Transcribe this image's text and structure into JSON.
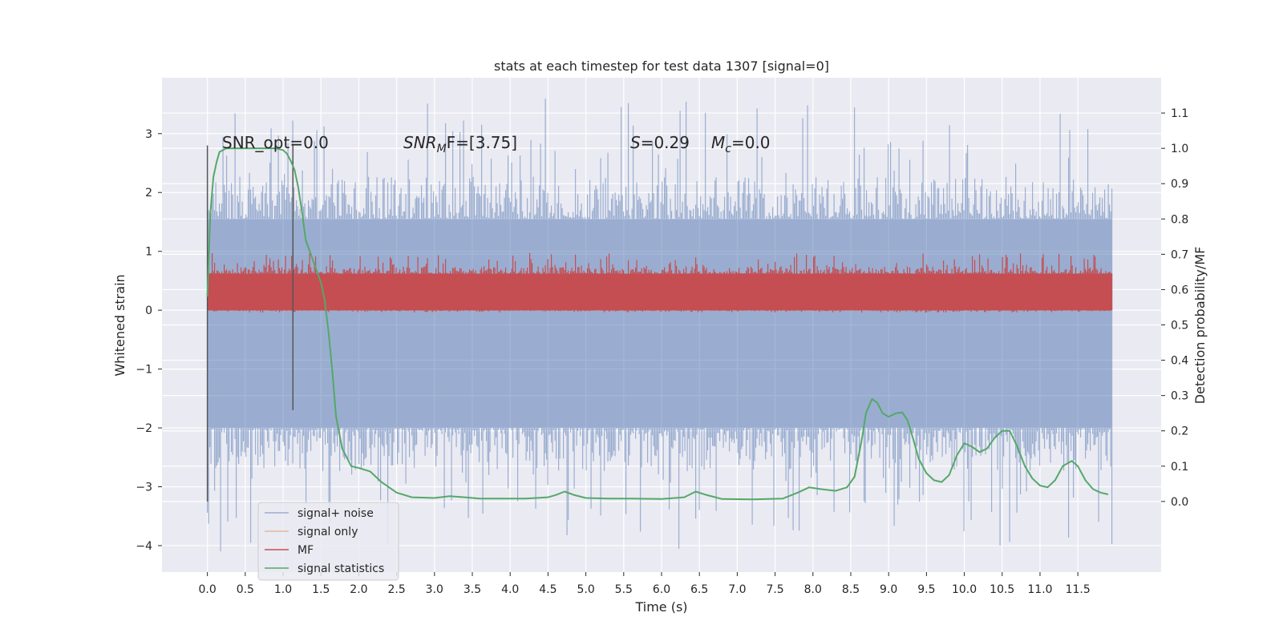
{
  "chart_data": {
    "type": "line",
    "title": "stats at each timestep for test data 1307 [signal=0]",
    "xlabel": "Time (s)",
    "ylabel": "Whitened strain",
    "y2label": "Detection probability/MF",
    "xlim": [
      -0.6,
      12.6
    ],
    "ylim": [
      -4.45,
      3.95
    ],
    "y2lim": [
      -0.2,
      1.2
    ],
    "x_ticks": [
      "0.0",
      "0.5",
      "1.0",
      "1.5",
      "2.0",
      "2.5",
      "3.0",
      "3.5",
      "4.0",
      "4.5",
      "5.0",
      "5.5",
      "6.0",
      "6.5",
      "7.0",
      "7.5",
      "8.0",
      "8.5",
      "9.0",
      "9.5",
      "10.0",
      "10.5",
      "11.0",
      "11.5"
    ],
    "y_ticks": [
      "3",
      "2",
      "1",
      "0",
      "−1",
      "−2",
      "−3",
      "−4"
    ],
    "y2_ticks": [
      "1.1",
      "1.0",
      "0.9",
      "0.8",
      "0.7",
      "0.6",
      "0.5",
      "0.4",
      "0.3",
      "0.2",
      "0.1",
      "0.0"
    ],
    "grid": true,
    "legend_position": "lower-left",
    "annotations": {
      "snr_opt": "SNR_opt=0.0",
      "snr_mf_prefix": "SNR",
      "snr_mf_sub": "M",
      "snr_mf_suffix": "F=[3.75]",
      "s_prefix": "S",
      "s_value": "=0.29",
      "mc_prefix": "M",
      "mc_sub": "c",
      "mc_value": "=0.0"
    },
    "window_markers": {
      "x": [
        0.0,
        1.13
      ],
      "y_top": [
        2.8,
        2.8
      ],
      "y_bottom": [
        -3.25,
        -1.7
      ]
    },
    "series": [
      {
        "name": "signal+ noise",
        "color": "#4c72b0",
        "alpha": 0.5,
        "axis": "left",
        "style": "dense noise",
        "x_range": [
          0.0,
          11.95
        ],
        "band": [
          -2.0,
          1.55
        ],
        "peak_max": 3.6,
        "trough_min": -4.1
      },
      {
        "name": "signal only",
        "color": "#dd8452",
        "alpha": 0.5,
        "axis": "left",
        "x": [
          0.0,
          11.95
        ],
        "y": [
          0.0,
          0.0
        ]
      },
      {
        "name": "MF",
        "color": "#c44e52",
        "alpha": 1.0,
        "axis": "left",
        "style": "dense noise",
        "x_range": [
          0.0,
          11.95
        ],
        "band": [
          0.0,
          0.62
        ],
        "peak_max": 0.97
      },
      {
        "name": "signal statistics",
        "color": "#55a868",
        "alpha": 1.0,
        "axis": "right",
        "x": [
          0.0,
          0.04,
          0.08,
          0.12,
          0.16,
          0.25,
          0.35,
          0.5,
          0.7,
          0.9,
          1.0,
          1.05,
          1.1,
          1.15,
          1.2,
          1.25,
          1.3,
          1.4,
          1.5,
          1.55,
          1.6,
          1.65,
          1.7,
          1.78,
          1.9,
          2.0,
          2.15,
          2.3,
          2.5,
          2.7,
          3.0,
          3.2,
          3.4,
          3.6,
          3.9,
          4.2,
          4.5,
          4.6,
          4.72,
          4.85,
          5.0,
          5.3,
          5.6,
          6.0,
          6.3,
          6.45,
          6.6,
          6.8,
          7.2,
          7.6,
          7.8,
          7.95,
          8.1,
          8.3,
          8.45,
          8.55,
          8.65,
          8.7,
          8.78,
          8.85,
          8.92,
          9.0,
          9.1,
          9.18,
          9.25,
          9.32,
          9.4,
          9.5,
          9.6,
          9.7,
          9.8,
          9.9,
          10.0,
          10.1,
          10.2,
          10.3,
          10.4,
          10.5,
          10.6,
          10.7,
          10.8,
          10.9,
          11.0,
          11.1,
          11.2,
          11.3,
          11.42,
          11.5,
          11.6,
          11.7,
          11.8,
          11.9
        ],
        "y": [
          0.58,
          0.82,
          0.92,
          0.96,
          0.99,
          1.0,
          1.0,
          1.0,
          1.0,
          1.0,
          0.995,
          0.985,
          0.965,
          0.94,
          0.89,
          0.82,
          0.74,
          0.68,
          0.62,
          0.57,
          0.48,
          0.37,
          0.24,
          0.15,
          0.1,
          0.095,
          0.085,
          0.055,
          0.025,
          0.012,
          0.01,
          0.015,
          0.012,
          0.008,
          0.008,
          0.008,
          0.012,
          0.018,
          0.028,
          0.018,
          0.01,
          0.008,
          0.008,
          0.007,
          0.012,
          0.028,
          0.018,
          0.007,
          0.006,
          0.008,
          0.025,
          0.04,
          0.035,
          0.03,
          0.04,
          0.07,
          0.18,
          0.25,
          0.29,
          0.28,
          0.25,
          0.24,
          0.25,
          0.252,
          0.23,
          0.18,
          0.12,
          0.08,
          0.06,
          0.055,
          0.075,
          0.13,
          0.165,
          0.155,
          0.14,
          0.15,
          0.18,
          0.2,
          0.2,
          0.155,
          0.1,
          0.065,
          0.045,
          0.04,
          0.06,
          0.1,
          0.115,
          0.1,
          0.06,
          0.035,
          0.025,
          0.02
        ]
      }
    ]
  }
}
